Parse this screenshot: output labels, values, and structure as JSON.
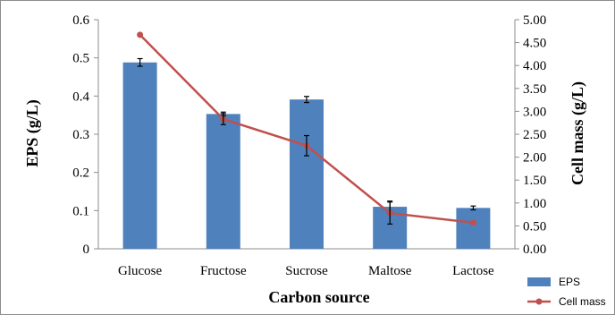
{
  "chart_data": {
    "type": "bar",
    "xlabel": "Carbon source",
    "ylabel": "EPS (g/L)",
    "y2label": "Cell mass (g/L)",
    "categories": [
      "Glucose",
      "Fructose",
      "Sucrose",
      "Maltose",
      "Lactose"
    ],
    "ylim": [
      0,
      0.6
    ],
    "y2lim": [
      0,
      5
    ],
    "yticks": [
      "0",
      "0.1",
      "0.2",
      "0.3",
      "0.4",
      "0.5",
      "0.6"
    ],
    "y2ticks": [
      "0.00",
      "0.50",
      "1.00",
      "1.50",
      "2.00",
      "2.50",
      "3.00",
      "3.50",
      "4.00",
      "4.50",
      "5.00"
    ],
    "legend_position": "bottom-right",
    "series": [
      {
        "name": "EPS",
        "type": "bar",
        "axis": "left",
        "color": "#4f81bd",
        "values": [
          0.488,
          0.353,
          0.391,
          0.11,
          0.107
        ],
        "errors": [
          0.01,
          0.005,
          0.008,
          0.015,
          0.005
        ]
      },
      {
        "name": "Cell mass",
        "type": "line",
        "axis": "right",
        "color": "#c0504d",
        "values": [
          4.67,
          2.83,
          2.25,
          0.78,
          0.57
        ],
        "errors": [
          0.0,
          0.12,
          0.22,
          0.24,
          0.0
        ]
      }
    ]
  }
}
